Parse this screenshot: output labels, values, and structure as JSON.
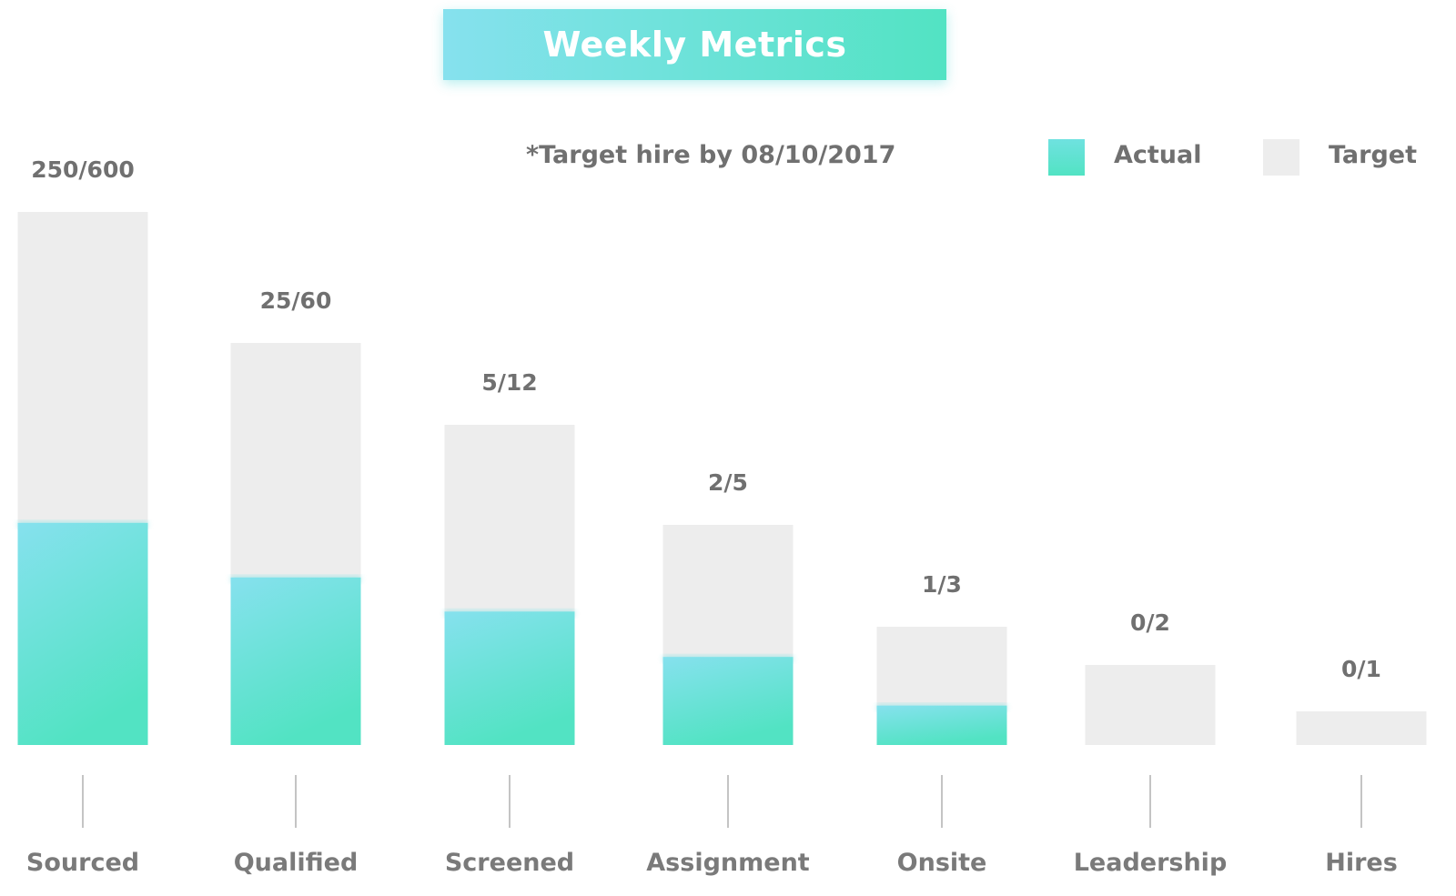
{
  "header": {
    "title": "Weekly Metrics",
    "note": "*Target hire by 08/10/2017"
  },
  "legend": {
    "actual_label": "Actual",
    "target_label": "Target"
  },
  "colors": {
    "actual_top": "#86e1ee",
    "actual_bottom": "#52e3c3",
    "target": "#ededed",
    "text": "#707070",
    "tick": "#b0b0b0"
  },
  "chart_data": {
    "type": "bar",
    "title": "Weekly Metrics",
    "categories": [
      "Sourced",
      "Qualified",
      "Screened",
      "Assignment",
      "Onsite",
      "Leadership",
      "Hires"
    ],
    "series": [
      {
        "name": "Actual",
        "values": [
          250,
          25,
          5,
          2,
          1,
          0,
          0
        ]
      },
      {
        "name": "Target",
        "values": [
          600,
          60,
          12,
          5,
          3,
          2,
          1
        ]
      }
    ],
    "labels": [
      "250/600",
      "25/60",
      "5/12",
      "2/5",
      "1/3",
      "0/2",
      "0/1"
    ],
    "legend_position": "top-right",
    "grid": false
  }
}
